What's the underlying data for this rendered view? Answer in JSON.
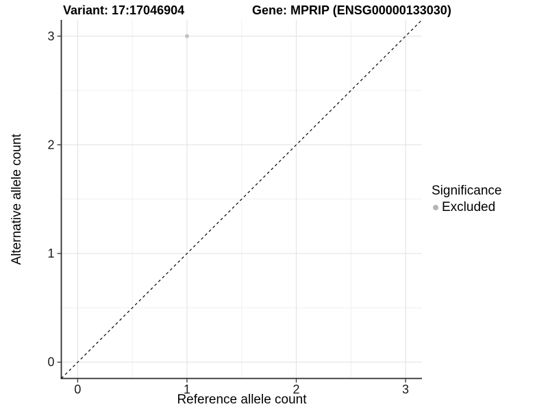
{
  "titles": {
    "variant": "Variant: 17:17046904",
    "gene": "Gene: MPRIP (ENSG00000133030)"
  },
  "axes": {
    "x_label": "Reference allele count",
    "y_label": "Alternative allele count"
  },
  "legend": {
    "title": "Significance",
    "items": [
      {
        "label": "Excluded",
        "color": "#b5b5b5"
      }
    ]
  },
  "colors": {
    "background": "#ffffff",
    "axis_line": "#2b2b2b",
    "tick_mark": "#333333",
    "tick_label": "#1a1a1a",
    "grid_major": "#e4e4e4",
    "grid_minor": "#efefef",
    "reference_line": "#000000",
    "point": "#c2c2c2"
  },
  "chart_data": {
    "type": "scatter",
    "title": "Variant: 17:17046904 — Gene: MPRIP (ENSG00000133030)",
    "xlabel": "Reference allele count",
    "ylabel": "Alternative allele count",
    "xlim": [
      -0.15,
      3.15
    ],
    "ylim": [
      -0.15,
      3.15
    ],
    "x_ticks": [
      0,
      1,
      2,
      3
    ],
    "y_ticks": [
      0,
      1,
      2,
      3
    ],
    "x_minor_ticks": [
      0.5,
      1.5,
      2.5
    ],
    "y_minor_ticks": [
      0.5,
      1.5,
      2.5
    ],
    "grid": true,
    "legend_position": "right",
    "series": [
      {
        "name": "Excluded",
        "color": "#c2c2c2",
        "points": [
          {
            "x": 1,
            "y": 3
          }
        ]
      }
    ],
    "reference_line": {
      "type": "identity",
      "style": "dashed",
      "from": [
        -0.15,
        -0.15
      ],
      "to": [
        3.15,
        3.15
      ]
    }
  }
}
